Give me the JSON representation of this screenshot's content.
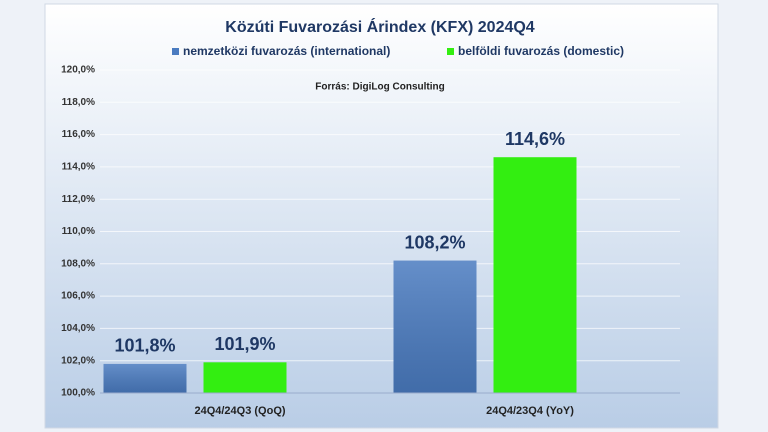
{
  "chart_data": {
    "type": "bar",
    "title": "Közúti Fuvarozási Árindex (KFX) 2024Q4",
    "subtitle": "Forrás: DigiLog Consulting",
    "categories": [
      "24Q4/24Q3 (QoQ)",
      "24Q4/23Q4 (YoY)"
    ],
    "series": [
      {
        "name": "nemzetközi fuvarozás (international)",
        "color": "#4a7bc0",
        "values": [
          101.8,
          108.2
        ],
        "value_labels": [
          "101,8%",
          "108,2%"
        ]
      },
      {
        "name": "belföldi fuvarozás (domestic)",
        "color": "#33ee11",
        "values": [
          101.9,
          114.6
        ],
        "value_labels": [
          "101,9%",
          "114,6%"
        ]
      }
    ],
    "ylim": [
      100,
      120
    ],
    "yticks": [
      {
        "value": 100,
        "label": "100,0%"
      },
      {
        "value": 102,
        "label": "102,0%"
      },
      {
        "value": 104,
        "label": "104,0%"
      },
      {
        "value": 106,
        "label": "106,0%"
      },
      {
        "value": 108,
        "label": "108,0%"
      },
      {
        "value": 110,
        "label": "110,0%"
      },
      {
        "value": 112,
        "label": "112,0%"
      },
      {
        "value": 114,
        "label": "114,0%"
      },
      {
        "value": 116,
        "label": "116,0%"
      },
      {
        "value": 118,
        "label": "118,0%"
      },
      {
        "value": 120,
        "label": "120,0%"
      }
    ],
    "grid": true
  }
}
